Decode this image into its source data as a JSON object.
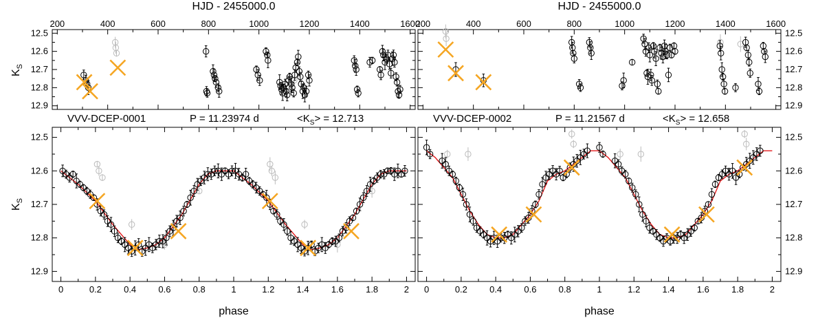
{
  "chart_data": [
    {
      "id": "tl",
      "type": "scatter",
      "xlabel": "HJD - 2455000.0",
      "ylabel": "K_S",
      "xlim": [
        180,
        1620
      ],
      "ylim": [
        12.92,
        12.48
      ],
      "xticks": [
        "200",
        "400",
        "600",
        "800",
        "1000",
        "1200",
        "1400",
        "1600"
      ],
      "xtick_values": [
        200,
        400,
        600,
        800,
        1000,
        1200,
        1400,
        1600
      ],
      "yticks": [
        "12.5",
        "12.6",
        "12.7",
        "12.8",
        "12.9"
      ],
      "ytick_values": [
        12.5,
        12.6,
        12.7,
        12.8,
        12.9
      ],
      "points": [
        [
          305,
          12.73
        ],
        [
          313,
          12.76
        ],
        [
          318,
          12.78
        ],
        [
          323,
          12.8
        ],
        [
          790,
          12.6
        ],
        [
          792,
          12.82
        ],
        [
          795,
          12.83
        ],
        [
          818,
          12.71
        ],
        [
          822,
          12.73
        ],
        [
          826,
          12.75
        ],
        [
          830,
          12.77
        ],
        [
          838,
          12.8
        ],
        [
          842,
          12.82
        ],
        [
          990,
          12.7
        ],
        [
          996,
          12.73
        ],
        [
          1003,
          12.76
        ],
        [
          1028,
          12.6
        ],
        [
          1033,
          12.62
        ],
        [
          1036,
          12.65
        ],
        [
          1082,
          12.77
        ],
        [
          1086,
          12.79
        ],
        [
          1090,
          12.81
        ],
        [
          1094,
          12.83
        ],
        [
          1098,
          12.8
        ],
        [
          1104,
          12.78
        ],
        [
          1108,
          12.82
        ],
        [
          1112,
          12.84
        ],
        [
          1118,
          12.76
        ],
        [
          1122,
          12.74
        ],
        [
          1128,
          12.78
        ],
        [
          1132,
          12.8
        ],
        [
          1138,
          12.83
        ],
        [
          1142,
          12.73
        ],
        [
          1146,
          12.69
        ],
        [
          1152,
          12.66
        ],
        [
          1156,
          12.63
        ],
        [
          1160,
          12.71
        ],
        [
          1164,
          12.74
        ],
        [
          1168,
          12.78
        ],
        [
          1174,
          12.82
        ],
        [
          1178,
          12.8
        ],
        [
          1182,
          12.84
        ],
        [
          1188,
          12.82
        ],
        [
          1196,
          12.73
        ],
        [
          1200,
          12.76
        ],
        [
          1378,
          12.65
        ],
        [
          1382,
          12.68
        ],
        [
          1386,
          12.7
        ],
        [
          1390,
          12.81
        ],
        [
          1394,
          12.83
        ],
        [
          1440,
          12.66
        ],
        [
          1450,
          12.65
        ],
        [
          1480,
          12.7
        ],
        [
          1484,
          12.73
        ],
        [
          1490,
          12.6
        ],
        [
          1494,
          12.62
        ],
        [
          1500,
          12.66
        ],
        [
          1506,
          12.64
        ],
        [
          1512,
          12.62
        ],
        [
          1518,
          12.67
        ],
        [
          1524,
          12.72
        ],
        [
          1530,
          12.64
        ],
        [
          1534,
          12.62
        ],
        [
          1538,
          12.66
        ],
        [
          1544,
          12.74
        ],
        [
          1548,
          12.77
        ],
        [
          1552,
          12.82
        ],
        [
          1556,
          12.84
        ],
        [
          1560,
          12.81
        ]
      ],
      "faint_points": [
        [
          430,
          12.55
        ],
        [
          432,
          12.58
        ],
        [
          435,
          12.61
        ],
        [
          1140,
          12.76
        ]
      ],
      "crosses": [
        [
          307,
          12.77
        ],
        [
          330,
          12.82
        ],
        [
          440,
          12.69
        ]
      ]
    },
    {
      "id": "tr",
      "type": "scatter",
      "xlabel": "HJD - 2455000.0",
      "ylabel": "",
      "xlim": [
        180,
        1620
      ],
      "ylim": [
        12.92,
        12.48
      ],
      "xticks": [
        "200",
        "400",
        "600",
        "800",
        "1000",
        "1200",
        "1400",
        "1600"
      ],
      "xtick_values": [
        200,
        400,
        600,
        800,
        1000,
        1200,
        1400,
        1600
      ],
      "yticks": [
        "12.5",
        "12.6",
        "12.7",
        "12.8",
        "12.9"
      ],
      "ytick_values": [
        12.5,
        12.6,
        12.7,
        12.8,
        12.9
      ],
      "points": [
        [
          330,
          12.7
        ],
        [
          440,
          12.76
        ],
        [
          790,
          12.55
        ],
        [
          793,
          12.58
        ],
        [
          796,
          12.61
        ],
        [
          800,
          12.64
        ],
        [
          820,
          12.78
        ],
        [
          825,
          12.8
        ],
        [
          860,
          12.55
        ],
        [
          864,
          12.58
        ],
        [
          868,
          12.61
        ],
        [
          990,
          12.79
        ],
        [
          996,
          12.76
        ],
        [
          1030,
          12.66
        ],
        [
          1075,
          12.53
        ],
        [
          1080,
          12.56
        ],
        [
          1084,
          12.6
        ],
        [
          1088,
          12.72
        ],
        [
          1092,
          12.74
        ],
        [
          1096,
          12.58
        ],
        [
          1100,
          12.62
        ],
        [
          1104,
          12.73
        ],
        [
          1108,
          12.76
        ],
        [
          1114,
          12.57
        ],
        [
          1118,
          12.6
        ],
        [
          1124,
          12.64
        ],
        [
          1130,
          12.78
        ],
        [
          1134,
          12.82
        ],
        [
          1140,
          12.58
        ],
        [
          1146,
          12.61
        ],
        [
          1152,
          12.63
        ],
        [
          1158,
          12.57
        ],
        [
          1162,
          12.6
        ],
        [
          1168,
          12.62
        ],
        [
          1174,
          12.73
        ],
        [
          1180,
          12.58
        ],
        [
          1186,
          12.62
        ],
        [
          1196,
          12.57
        ],
        [
          1200,
          12.6
        ],
        [
          1378,
          12.57
        ],
        [
          1382,
          12.61
        ],
        [
          1386,
          12.7
        ],
        [
          1390,
          12.74
        ],
        [
          1394,
          12.78
        ],
        [
          1398,
          12.82
        ],
        [
          1440,
          12.8
        ],
        [
          1480,
          12.55
        ],
        [
          1484,
          12.58
        ],
        [
          1490,
          12.62
        ],
        [
          1494,
          12.66
        ],
        [
          1498,
          12.72
        ],
        [
          1530,
          12.78
        ],
        [
          1534,
          12.82
        ],
        [
          1550,
          12.57
        ],
        [
          1554,
          12.6
        ],
        [
          1558,
          12.63
        ]
      ],
      "faint_points": [
        [
          290,
          12.49
        ],
        [
          292,
          12.53
        ],
        [
          1380,
          12.55
        ],
        [
          1460,
          12.56
        ]
      ],
      "crosses": [
        [
          290,
          12.59
        ],
        [
          330,
          12.72
        ],
        [
          440,
          12.77
        ]
      ]
    },
    {
      "id": "bl",
      "type": "scatter",
      "title": "VVV-DCEP-0001",
      "period": "P = 11.23974 d",
      "mean_mag": "<K_S> = 12.713",
      "xlabel": "phase",
      "ylabel": "K_S",
      "xlim": [
        -0.05,
        2.05
      ],
      "ylim": [
        12.93,
        12.47
      ],
      "xticks": [
        "0",
        "0.2",
        "0.4",
        "0.6",
        "0.8",
        "1",
        "1.2",
        "1.4",
        "1.6",
        "1.8",
        "2"
      ],
      "xtick_values": [
        0,
        0.2,
        0.4,
        0.6,
        0.8,
        1.0,
        1.2,
        1.4,
        1.6,
        1.8,
        2.0
      ],
      "yticks": [
        "12.5",
        "12.6",
        "12.7",
        "12.8",
        "12.9"
      ],
      "ytick_values": [
        12.5,
        12.6,
        12.7,
        12.8,
        12.9
      ],
      "curve": [
        [
          0,
          12.6
        ],
        [
          0.1,
          12.64
        ],
        [
          0.2,
          12.69
        ],
        [
          0.3,
          12.76
        ],
        [
          0.4,
          12.82
        ],
        [
          0.45,
          12.835
        ],
        [
          0.5,
          12.83
        ],
        [
          0.55,
          12.82
        ],
        [
          0.6,
          12.8
        ],
        [
          0.7,
          12.73
        ],
        [
          0.8,
          12.64
        ],
        [
          0.85,
          12.61
        ],
        [
          0.9,
          12.6
        ],
        [
          0.95,
          12.6
        ],
        [
          1.0,
          12.6
        ]
      ],
      "points": [
        [
          0.01,
          12.6
        ],
        [
          0.03,
          12.61
        ],
        [
          0.05,
          12.62
        ],
        [
          0.07,
          12.61
        ],
        [
          0.09,
          12.63
        ],
        [
          0.11,
          12.64
        ],
        [
          0.13,
          12.65
        ],
        [
          0.15,
          12.66
        ],
        [
          0.17,
          12.67
        ],
        [
          0.19,
          12.68
        ],
        [
          0.21,
          12.7
        ],
        [
          0.23,
          12.72
        ],
        [
          0.25,
          12.73
        ],
        [
          0.27,
          12.75
        ],
        [
          0.29,
          12.76
        ],
        [
          0.31,
          12.78
        ],
        [
          0.33,
          12.8
        ],
        [
          0.35,
          12.81
        ],
        [
          0.37,
          12.82
        ],
        [
          0.39,
          12.83
        ],
        [
          0.41,
          12.84
        ],
        [
          0.43,
          12.83
        ],
        [
          0.45,
          12.82
        ],
        [
          0.47,
          12.84
        ],
        [
          0.49,
          12.83
        ],
        [
          0.51,
          12.82
        ],
        [
          0.53,
          12.83
        ],
        [
          0.55,
          12.82
        ],
        [
          0.57,
          12.81
        ],
        [
          0.59,
          12.81
        ],
        [
          0.61,
          12.8
        ],
        [
          0.63,
          12.78
        ],
        [
          0.65,
          12.77
        ],
        [
          0.67,
          12.75
        ],
        [
          0.69,
          12.74
        ],
        [
          0.71,
          12.72
        ],
        [
          0.73,
          12.7
        ],
        [
          0.75,
          12.68
        ],
        [
          0.77,
          12.66
        ],
        [
          0.79,
          12.64
        ],
        [
          0.81,
          12.63
        ],
        [
          0.83,
          12.62
        ],
        [
          0.85,
          12.61
        ],
        [
          0.87,
          12.61
        ],
        [
          0.89,
          12.6
        ],
        [
          0.91,
          12.6
        ],
        [
          0.93,
          12.61
        ],
        [
          0.95,
          12.6
        ],
        [
          0.97,
          12.61
        ],
        [
          0.99,
          12.6
        ]
      ],
      "faint_points": [
        [
          0.21,
          12.58
        ],
        [
          0.22,
          12.6
        ],
        [
          0.24,
          12.62
        ],
        [
          0.41,
          12.76
        ],
        [
          0.6,
          12.82
        ],
        [
          0.8,
          12.66
        ]
      ],
      "crosses": [
        [
          0.21,
          12.69
        ],
        [
          0.43,
          12.83
        ],
        [
          0.68,
          12.78
        ]
      ]
    },
    {
      "id": "br",
      "type": "scatter",
      "title": "VVV-DCEP-0002",
      "period": "P = 11.21567 d",
      "mean_mag": "<K_S> = 12.658",
      "xlabel": "phase",
      "ylabel": "K_S",
      "xlim": [
        -0.05,
        2.05
      ],
      "ylim": [
        12.93,
        12.47
      ],
      "xticks": [
        "0",
        "0.2",
        "0.4",
        "0.6",
        "0.8",
        "1",
        "1.2",
        "1.4",
        "1.6",
        "1.8",
        "2"
      ],
      "xtick_values": [
        0,
        0.2,
        0.4,
        0.6,
        0.8,
        1.0,
        1.2,
        1.4,
        1.6,
        1.8,
        2.0
      ],
      "yticks": [
        "12.5",
        "12.6",
        "12.7",
        "12.8",
        "12.9"
      ],
      "ytick_values": [
        12.5,
        12.6,
        12.7,
        12.8,
        12.9
      ],
      "curve": [
        [
          0,
          12.54
        ],
        [
          0.05,
          12.56
        ],
        [
          0.1,
          12.59
        ],
        [
          0.15,
          12.62
        ],
        [
          0.2,
          12.67
        ],
        [
          0.25,
          12.72
        ],
        [
          0.3,
          12.76
        ],
        [
          0.35,
          12.79
        ],
        [
          0.4,
          12.8
        ],
        [
          0.45,
          12.8
        ],
        [
          0.5,
          12.79
        ],
        [
          0.55,
          12.76
        ],
        [
          0.6,
          12.73
        ],
        [
          0.65,
          12.69
        ],
        [
          0.7,
          12.63
        ],
        [
          0.75,
          12.61
        ],
        [
          0.8,
          12.6
        ],
        [
          0.85,
          12.58
        ],
        [
          0.9,
          12.56
        ],
        [
          0.95,
          12.54
        ],
        [
          1.0,
          12.54
        ]
      ],
      "points": [
        [
          0.0,
          12.53
        ],
        [
          0.02,
          12.55
        ],
        [
          0.09,
          12.57
        ],
        [
          0.11,
          12.58
        ],
        [
          0.13,
          12.6
        ],
        [
          0.15,
          12.61
        ],
        [
          0.17,
          12.63
        ],
        [
          0.19,
          12.65
        ],
        [
          0.21,
          12.67
        ],
        [
          0.23,
          12.7
        ],
        [
          0.25,
          12.73
        ],
        [
          0.27,
          12.75
        ],
        [
          0.29,
          12.77
        ],
        [
          0.31,
          12.78
        ],
        [
          0.33,
          12.79
        ],
        [
          0.35,
          12.8
        ],
        [
          0.37,
          12.81
        ],
        [
          0.39,
          12.8
        ],
        [
          0.41,
          12.81
        ],
        [
          0.43,
          12.8
        ],
        [
          0.45,
          12.8
        ],
        [
          0.47,
          12.79
        ],
        [
          0.49,
          12.8
        ],
        [
          0.51,
          12.79
        ],
        [
          0.53,
          12.78
        ],
        [
          0.55,
          12.77
        ],
        [
          0.57,
          12.75
        ],
        [
          0.59,
          12.74
        ],
        [
          0.61,
          12.72
        ],
        [
          0.63,
          12.7
        ],
        [
          0.65,
          12.67
        ],
        [
          0.67,
          12.64
        ],
        [
          0.69,
          12.62
        ],
        [
          0.71,
          12.61
        ],
        [
          0.73,
          12.6
        ],
        [
          0.75,
          12.61
        ],
        [
          0.77,
          12.6
        ],
        [
          0.79,
          12.62
        ],
        [
          0.81,
          12.61
        ],
        [
          0.83,
          12.59
        ],
        [
          0.85,
          12.58
        ],
        [
          0.87,
          12.57
        ],
        [
          0.89,
          12.56
        ],
        [
          0.91,
          12.55
        ],
        [
          0.93,
          12.54
        ]
      ],
      "faint_points": [
        [
          0.12,
          12.55
        ],
        [
          0.84,
          12.49
        ],
        [
          0.85,
          12.52
        ],
        [
          0.24,
          12.55
        ]
      ],
      "crosses": [
        [
          0.42,
          12.79
        ],
        [
          0.62,
          12.73
        ],
        [
          0.84,
          12.59
        ]
      ]
    }
  ]
}
